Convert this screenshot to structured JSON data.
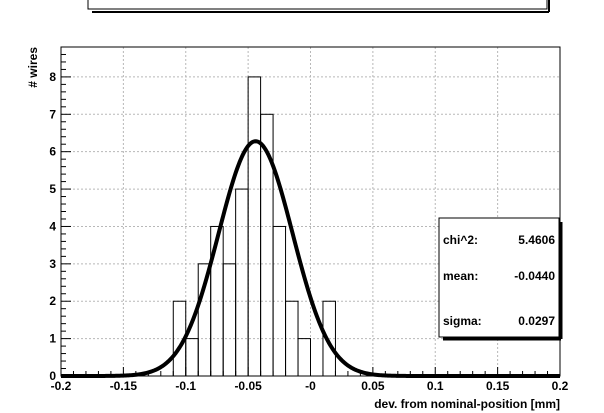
{
  "chart_data": {
    "type": "bar",
    "subtype": "histogram",
    "xlabel": "dev. from nominal-position [mm]",
    "ylabel": "# wires",
    "xlim": [
      -0.2,
      0.2
    ],
    "ylim": [
      0,
      8.8
    ],
    "x_ticks": [
      {
        "value": -0.2,
        "label": "-0.2"
      },
      {
        "value": -0.15,
        "label": "-0.15"
      },
      {
        "value": -0.1,
        "label": "-0.1"
      },
      {
        "value": -0.05,
        "label": "-0.05"
      },
      {
        "value": 0,
        "label": "-0"
      },
      {
        "value": 0.05,
        "label": "0.05"
      },
      {
        "value": 0.1,
        "label": "0.1"
      },
      {
        "value": 0.15,
        "label": "0.15"
      },
      {
        "value": 0.2,
        "label": "0.2"
      }
    ],
    "y_ticks": [
      {
        "value": 0,
        "label": "0"
      },
      {
        "value": 1,
        "label": "1"
      },
      {
        "value": 2,
        "label": "2"
      },
      {
        "value": 3,
        "label": "3"
      },
      {
        "value": 4,
        "label": "4"
      },
      {
        "value": 5,
        "label": "5"
      },
      {
        "value": 6,
        "label": "6"
      },
      {
        "value": 7,
        "label": "7"
      },
      {
        "value": 8,
        "label": "8"
      }
    ],
    "grid": true,
    "bins": [
      {
        "x0": -0.11,
        "x1": -0.1,
        "count": 2
      },
      {
        "x0": -0.1,
        "x1": -0.09,
        "count": 1
      },
      {
        "x0": -0.09,
        "x1": -0.08,
        "count": 3
      },
      {
        "x0": -0.08,
        "x1": -0.07,
        "count": 4
      },
      {
        "x0": -0.07,
        "x1": -0.06,
        "count": 3
      },
      {
        "x0": -0.06,
        "x1": -0.05,
        "count": 5
      },
      {
        "x0": -0.05,
        "x1": -0.04,
        "count": 8
      },
      {
        "x0": -0.04,
        "x1": -0.03,
        "count": 7
      },
      {
        "x0": -0.03,
        "x1": -0.02,
        "count": 4
      },
      {
        "x0": -0.02,
        "x1": -0.01,
        "count": 2
      },
      {
        "x0": -0.01,
        "x1": 0.0,
        "count": 1
      },
      {
        "x0": 0.0,
        "x1": 0.01,
        "count": 0
      },
      {
        "x0": 0.01,
        "x1": 0.02,
        "count": 2
      }
    ],
    "fit": {
      "type": "gaussian",
      "amplitude": 6.28,
      "mean": -0.044,
      "sigma": 0.0297
    },
    "stats_box": [
      {
        "label": "chi^2:",
        "value": "5.4606"
      },
      {
        "label": "mean:",
        "value": "-0.0440"
      },
      {
        "label": "sigma:",
        "value": "0.0297"
      }
    ]
  }
}
